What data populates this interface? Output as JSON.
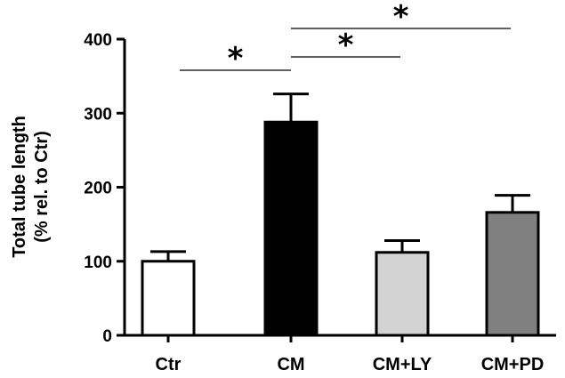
{
  "chart_data": {
    "type": "bar",
    "categories": [
      "Ctr",
      "CM",
      "CM+LY",
      "CM+PD"
    ],
    "values": [
      100,
      288,
      112,
      166
    ],
    "errors": [
      13,
      38,
      16,
      23
    ],
    "bar_colors": [
      "#ffffff",
      "#000000",
      "#d3d3d3",
      "#808080"
    ],
    "ylabel_line1": "Total tube length",
    "ylabel_line2": "(% rel. to Ctr)",
    "ylim": [
      0,
      400
    ],
    "yticks": [
      0,
      100,
      200,
      300,
      400
    ],
    "grid": false,
    "significance": [
      {
        "from": "Ctr",
        "to": "CM",
        "label": "*"
      },
      {
        "from": "CM",
        "to": "CM+LY",
        "label": "*"
      },
      {
        "from": "CM",
        "to": "CM+PD",
        "label": "*"
      }
    ]
  }
}
